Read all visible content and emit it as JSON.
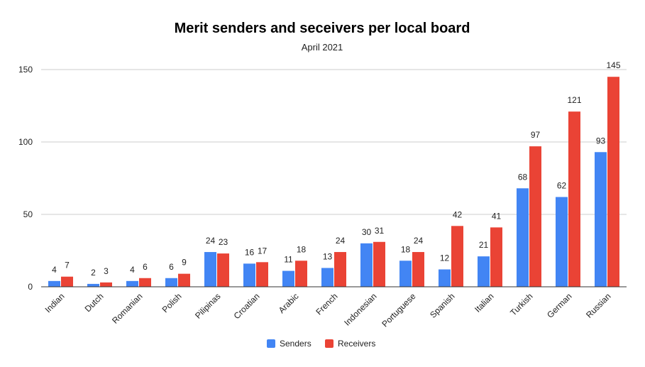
{
  "chart_data": {
    "type": "bar",
    "title": "Merit senders and seceivers per local board",
    "subtitle": "April 2021",
    "xlabel": "",
    "ylabel": "",
    "ylim": [
      0,
      150
    ],
    "yticks": [
      "0",
      "50",
      "100",
      "150"
    ],
    "grid": true,
    "legend_position": "bottom",
    "categories": [
      "Indian",
      "Dutch",
      "Romanian",
      "Polish",
      "Pilipinas",
      "Croatian",
      "Arabic",
      "French",
      "Indonesian",
      "Portuguese",
      "Spanish",
      "Italian",
      "Turkish",
      "German",
      "Russian"
    ],
    "series": [
      {
        "name": "Senders",
        "color": "#4285f4",
        "values": [
          4,
          2,
          4,
          6,
          24,
          16,
          11,
          13,
          30,
          18,
          12,
          21,
          68,
          62,
          93
        ]
      },
      {
        "name": "Receivers",
        "color": "#ea4335",
        "values": [
          7,
          3,
          6,
          9,
          23,
          17,
          18,
          24,
          31,
          24,
          42,
          41,
          97,
          121,
          145
        ]
      }
    ]
  }
}
